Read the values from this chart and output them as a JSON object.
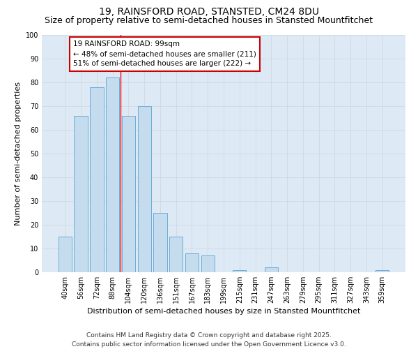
{
  "title": "19, RAINSFORD ROAD, STANSTED, CM24 8DU",
  "subtitle": "Size of property relative to semi-detached houses in Stansted Mountfitchet",
  "xlabel": "Distribution of semi-detached houses by size in Stansted Mountfitchet",
  "ylabel": "Number of semi-detached properties",
  "categories": [
    "40sqm",
    "56sqm",
    "72sqm",
    "88sqm",
    "104sqm",
    "120sqm",
    "136sqm",
    "151sqm",
    "167sqm",
    "183sqm",
    "199sqm",
    "215sqm",
    "231sqm",
    "247sqm",
    "263sqm",
    "279sqm",
    "295sqm",
    "311sqm",
    "327sqm",
    "343sqm",
    "359sqm"
  ],
  "values": [
    15,
    66,
    78,
    82,
    66,
    70,
    25,
    15,
    8,
    7,
    0,
    1,
    0,
    2,
    0,
    0,
    0,
    0,
    0,
    0,
    1
  ],
  "bar_color": "#c5dcee",
  "bar_edge_color": "#6aadd5",
  "annotation_title": "19 RAINSFORD ROAD: 99sqm",
  "annotation_line1": "← 48% of semi-detached houses are smaller (211)",
  "annotation_line2": "51% of semi-detached houses are larger (222) →",
  "annotation_box_color": "#ffffff",
  "annotation_box_edge_color": "#cc0000",
  "red_line_x": 3.5,
  "ylim": [
    0,
    100
  ],
  "yticks": [
    0,
    10,
    20,
    30,
    40,
    50,
    60,
    70,
    80,
    90,
    100
  ],
  "grid_color": "#d0d8e0",
  "bg_color": "#ddeaf5",
  "footer_line1": "Contains HM Land Registry data © Crown copyright and database right 2025.",
  "footer_line2": "Contains public sector information licensed under the Open Government Licence v3.0.",
  "title_fontsize": 10,
  "subtitle_fontsize": 9,
  "xlabel_fontsize": 8,
  "ylabel_fontsize": 8,
  "tick_fontsize": 7,
  "annotation_fontsize": 7.5,
  "footer_fontsize": 6.5
}
